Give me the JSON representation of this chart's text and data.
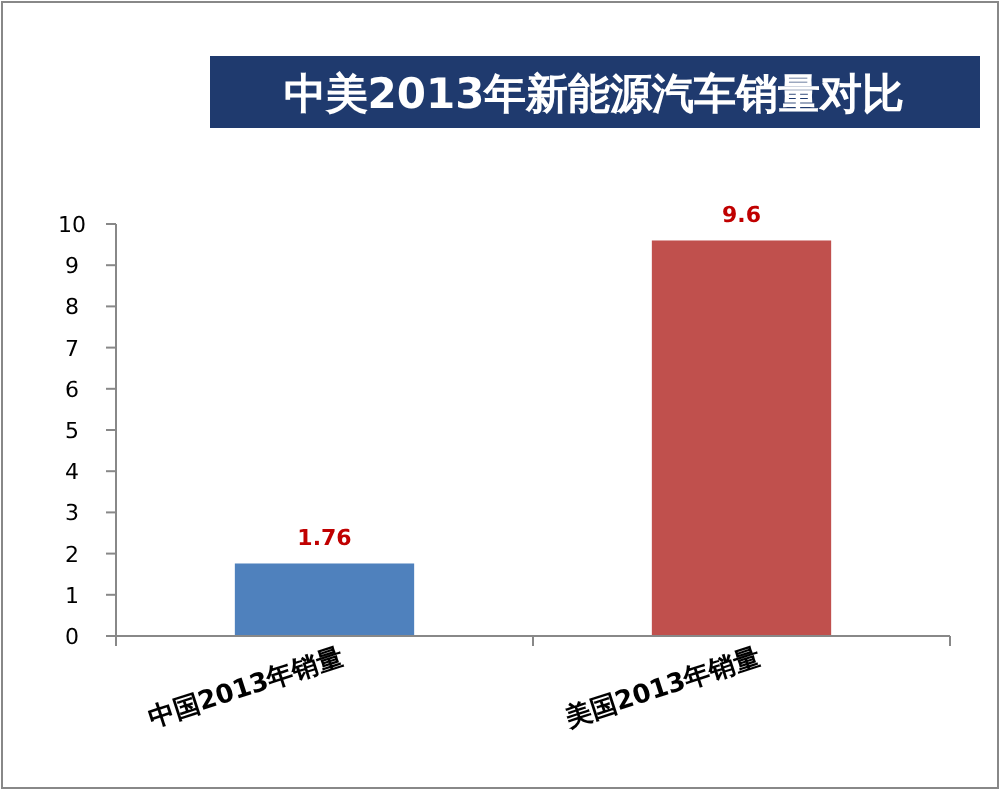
{
  "chart_data": {
    "type": "bar",
    "title": "中美2013年新能源汽车销量对比",
    "categories": [
      "中国2013年销量",
      "美国2013年销量"
    ],
    "values": [
      1.76,
      9.6
    ],
    "colors": [
      "#4f81bd",
      "#c0504d"
    ],
    "ylim": [
      0,
      10
    ],
    "yticks": [
      0,
      1,
      2,
      3,
      4,
      5,
      6,
      7,
      8,
      9,
      10
    ],
    "data_labels": true
  }
}
